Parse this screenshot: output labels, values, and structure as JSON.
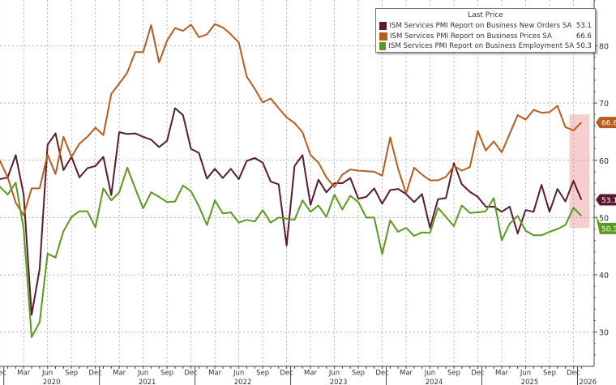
{
  "chart_data": {
    "type": "line",
    "title": "",
    "xlabel": "",
    "ylabel": "",
    "ylim": [
      24,
      88
    ],
    "yticks": [
      30,
      40,
      50,
      60,
      70,
      80
    ],
    "grid": true,
    "legend_position": "top-right",
    "legend_title": "Last Price",
    "x": [
      "2019-12",
      "2020-01",
      "2020-02",
      "2020-03",
      "2020-04",
      "2020-05",
      "2020-06",
      "2020-07",
      "2020-08",
      "2020-09",
      "2020-10",
      "2020-11",
      "2020-12",
      "2021-01",
      "2021-02",
      "2021-03",
      "2021-04",
      "2021-05",
      "2021-06",
      "2021-07",
      "2021-08",
      "2021-09",
      "2021-10",
      "2021-11",
      "2021-12",
      "2022-01",
      "2022-02",
      "2022-03",
      "2022-04",
      "2022-05",
      "2022-06",
      "2022-07",
      "2022-08",
      "2022-09",
      "2022-10",
      "2022-11",
      "2022-12",
      "2023-01",
      "2023-02",
      "2023-03",
      "2023-04",
      "2023-05",
      "2023-06",
      "2023-07",
      "2023-08",
      "2023-09",
      "2023-10",
      "2023-11",
      "2023-12",
      "2024-01",
      "2024-02",
      "2024-03",
      "2024-04",
      "2024-05",
      "2024-06",
      "2024-07",
      "2024-08",
      "2024-09",
      "2024-10",
      "2024-11",
      "2024-12",
      "2025-01",
      "2025-02",
      "2025-03",
      "2025-04",
      "2025-05",
      "2025-06",
      "2025-07",
      "2025-08",
      "2025-09",
      "2025-10",
      "2025-11",
      "2025-12",
      "2026-01"
    ],
    "x_month_labels": [
      "Mar",
      "Jun",
      "Sep",
      "Dec"
    ],
    "x_year_labels": [
      "2020",
      "2021",
      "2022",
      "2023",
      "2024",
      "2025",
      "2026"
    ],
    "highlight_range": [
      "2025-12",
      "2026-01"
    ],
    "series": [
      {
        "name": "ISM Services PMI Report on Business New Orders SA",
        "last": "53.1",
        "color": "#5c1a2e",
        "values": [
          56.7,
          57,
          60.9,
          54,
          33,
          41,
          62.7,
          64.7,
          58.3,
          60.6,
          57,
          58.6,
          59,
          60.6,
          53.9,
          64.9,
          64.6,
          64.7,
          64.1,
          63.6,
          62.3,
          63.4,
          69.1,
          67.9,
          62,
          61.3,
          56.8,
          58.5,
          56.9,
          58.5,
          56.7,
          59.9,
          60.4,
          59.6,
          56.3,
          55.8,
          45.1,
          59,
          60.9,
          52.2,
          56.6,
          54.4,
          56,
          56,
          56.9,
          53.3,
          53.6,
          55.1,
          52.4,
          54.8,
          55,
          54.1,
          52.7,
          54.1,
          48.2,
          53.2,
          53.4,
          59.5,
          55.8,
          54.5,
          53.6,
          51.9,
          51.9,
          51,
          51.9,
          47.2,
          51.3,
          51,
          55.7,
          51,
          55,
          52.8,
          56.4,
          53.1
        ]
      },
      {
        "name": "ISM Services PMI Report on Business Prices SA",
        "last": "66.6",
        "color": "#b85c1e",
        "values": [
          60,
          57,
          52.6,
          50.4,
          55.1,
          55.1,
          61,
          57.6,
          64.1,
          60.6,
          62.9,
          64.1,
          65.7,
          64.4,
          71.6,
          73.4,
          75.3,
          78.9,
          78.9,
          83.6,
          77.1,
          80.9,
          83.1,
          82.6,
          83.7,
          81.5,
          82,
          83.8,
          83.2,
          82,
          80.6,
          74.6,
          72.5,
          70.1,
          70.8,
          69.1,
          67.5,
          66.5,
          64.9,
          60.9,
          59.6,
          57,
          55.3,
          57.5,
          58.4,
          58.2,
          58.1,
          58,
          57.3,
          64,
          58.5,
          54.2,
          58.7,
          57.5,
          56.5,
          56.5,
          57.1,
          59,
          58.2,
          58.8,
          65.1,
          61.7,
          63.3,
          61.4,
          64.6,
          67.9,
          67.1,
          68.8,
          68.3,
          68.4,
          69.5,
          65.8,
          65.2,
          66.6
        ]
      },
      {
        "name": "ISM Services PMI Report on Business Employment SA",
        "last": "50.3",
        "color": "#5a9a1e",
        "values": [
          55.4,
          54,
          56.1,
          48,
          29.1,
          31.7,
          43.7,
          43,
          47.6,
          50.1,
          51.1,
          51.1,
          48.3,
          55.1,
          53,
          54.4,
          58.7,
          55.1,
          51.6,
          54.4,
          53.6,
          52.7,
          52.8,
          55.6,
          54.6,
          52,
          48.7,
          53,
          50.7,
          50.9,
          49.1,
          49.6,
          49.3,
          51.3,
          49.1,
          50,
          49.8,
          49.6,
          53,
          51,
          52.1,
          50.1,
          54,
          51.4,
          53.8,
          52.7,
          50,
          50,
          43.6,
          49.5,
          47.5,
          48.2,
          46.8,
          47.4,
          47.3,
          51.7,
          50.1,
          48.5,
          52.1,
          50.8,
          50.9,
          51.1,
          53.4,
          46,
          48.9,
          50.3,
          47.7,
          46.9,
          46.9,
          47.5,
          48,
          48.7,
          51.7,
          50.3
        ]
      }
    ]
  }
}
